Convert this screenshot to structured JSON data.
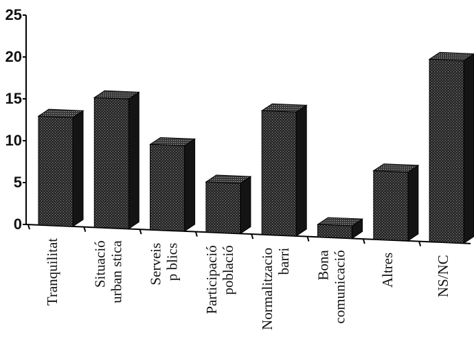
{
  "chart_data": {
    "type": "bar",
    "style": "3d",
    "title": "",
    "xlabel": "",
    "ylabel": "",
    "ylim": [
      0,
      25
    ],
    "yticks": [
      0,
      5,
      10,
      15,
      20,
      25
    ],
    "grid": false,
    "legend": "none",
    "categories": [
      [
        "Tranquilitat"
      ],
      [
        "Situació",
        "urban stica"
      ],
      [
        "Serveis",
        "p blics"
      ],
      [
        "Participació",
        "població"
      ],
      [
        "Normalitzacio",
        "barri"
      ],
      [
        "Bona",
        "comunicació"
      ],
      [
        "Altres"
      ],
      [
        "NS/NC"
      ]
    ],
    "values": [
      13,
      15.5,
      10.2,
      6,
      14.8,
      1.5,
      8.2,
      21.8
    ],
    "colors": {
      "bar_front": "#2e2e2e",
      "bar_side": "#141414",
      "bar_top": "#4a4a4a",
      "axis": "#000000"
    }
  }
}
